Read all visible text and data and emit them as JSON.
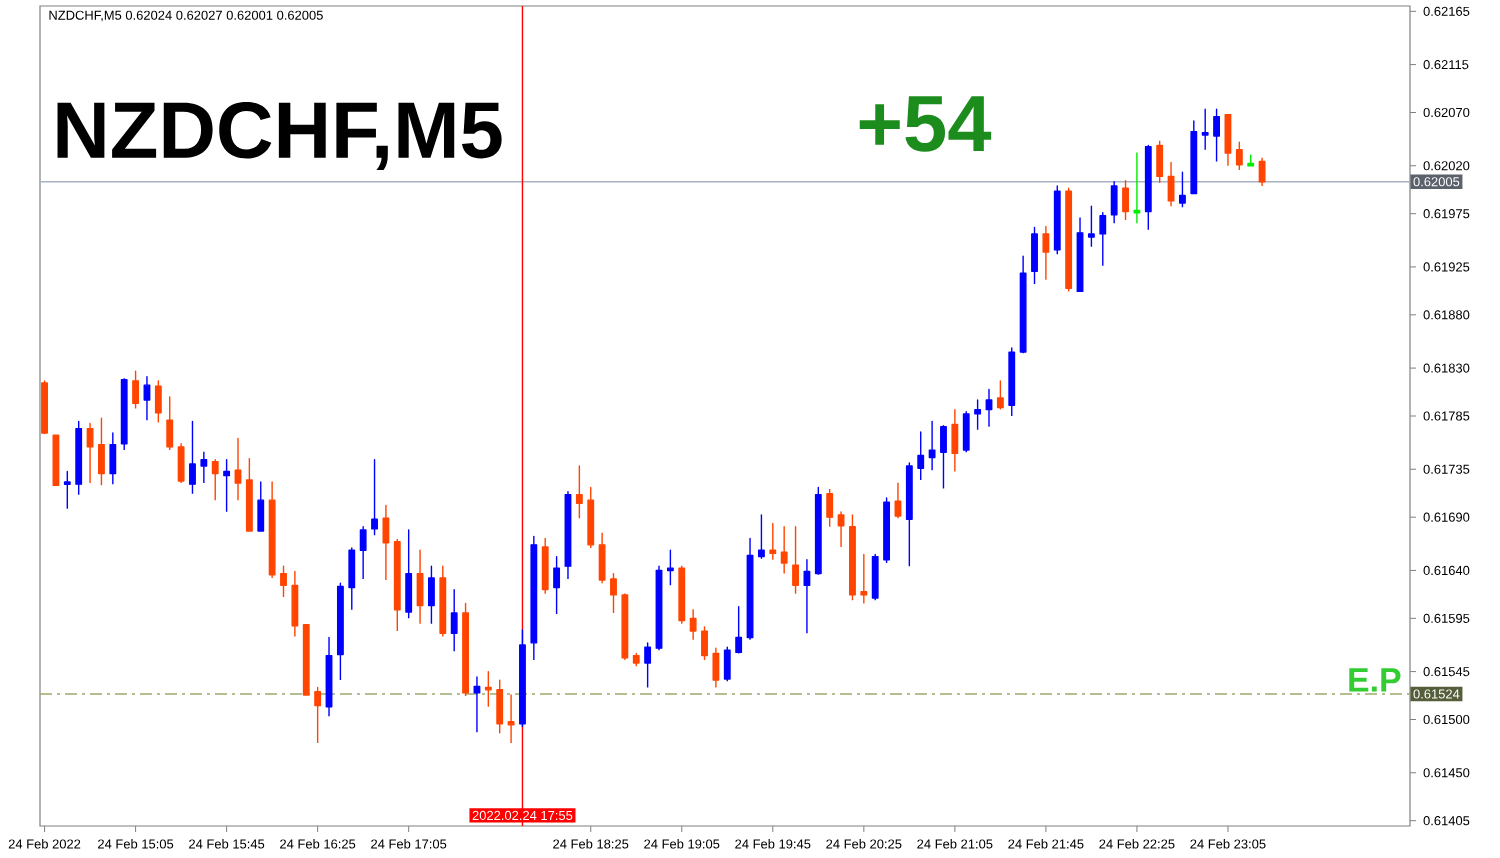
{
  "chart_data": {
    "type": "candlestick",
    "title": "NZDCHF,M5",
    "subtitle": "NZDCHF,M5  0.62024 0.62027 0.62001 0.62005",
    "x": [
      "2022-02-24T14:25",
      "2022-02-24T14:30",
      "2022-02-24T14:35",
      "2022-02-24T14:40",
      "2022-02-24T14:45",
      "2022-02-24T14:50",
      "2022-02-24T14:55",
      "2022-02-24T15:00",
      "2022-02-24T15:05",
      "2022-02-24T15:10",
      "2022-02-24T15:15",
      "2022-02-24T15:20",
      "2022-02-24T15:25",
      "2022-02-24T15:30",
      "2022-02-24T15:35",
      "2022-02-24T15:40",
      "2022-02-24T15:45",
      "2022-02-24T15:50",
      "2022-02-24T15:55",
      "2022-02-24T16:00",
      "2022-02-24T16:05",
      "2022-02-24T16:10",
      "2022-02-24T16:15",
      "2022-02-24T16:20",
      "2022-02-24T16:25",
      "2022-02-24T16:30",
      "2022-02-24T16:35",
      "2022-02-24T16:40",
      "2022-02-24T16:45",
      "2022-02-24T16:50",
      "2022-02-24T16:55",
      "2022-02-24T17:00",
      "2022-02-24T17:05",
      "2022-02-24T17:10",
      "2022-02-24T17:15",
      "2022-02-24T17:20",
      "2022-02-24T17:25",
      "2022-02-24T17:30",
      "2022-02-24T17:35",
      "2022-02-24T17:40",
      "2022-02-24T17:45",
      "2022-02-24T17:50",
      "2022-02-24T17:55",
      "2022-02-24T18:00",
      "2022-02-24T18:05",
      "2022-02-24T18:10",
      "2022-02-24T18:15",
      "2022-02-24T18:20",
      "2022-02-24T18:25",
      "2022-02-24T18:30",
      "2022-02-24T18:35",
      "2022-02-24T18:40",
      "2022-02-24T18:45",
      "2022-02-24T18:50",
      "2022-02-24T18:55",
      "2022-02-24T19:00",
      "2022-02-24T19:05",
      "2022-02-24T19:10",
      "2022-02-24T19:15",
      "2022-02-24T19:20",
      "2022-02-24T19:25",
      "2022-02-24T19:30",
      "2022-02-24T19:35",
      "2022-02-24T19:40",
      "2022-02-24T19:45",
      "2022-02-24T19:50",
      "2022-02-24T19:55",
      "2022-02-24T20:00",
      "2022-02-24T20:05",
      "2022-02-24T20:10",
      "2022-02-24T20:15",
      "2022-02-24T20:20",
      "2022-02-24T20:25",
      "2022-02-24T20:30",
      "2022-02-24T20:35",
      "2022-02-24T20:40",
      "2022-02-24T20:45",
      "2022-02-24T20:50",
      "2022-02-24T20:55",
      "2022-02-24T21:00",
      "2022-02-24T21:05",
      "2022-02-24T21:10",
      "2022-02-24T21:15",
      "2022-02-24T21:20",
      "2022-02-24T21:25",
      "2022-02-24T21:30",
      "2022-02-24T21:35",
      "2022-02-24T21:40",
      "2022-02-24T21:45",
      "2022-02-24T21:50",
      "2022-02-24T21:55",
      "2022-02-24T22:00",
      "2022-02-24T22:05",
      "2022-02-24T22:10",
      "2022-02-24T22:15",
      "2022-02-24T22:20",
      "2022-02-24T22:25",
      "2022-02-24T22:30",
      "2022-02-24T22:35",
      "2022-02-24T22:40",
      "2022-02-24T22:45",
      "2022-02-24T22:50",
      "2022-02-24T22:55",
      "2022-02-24T23:00",
      "2022-02-24T23:05",
      "2022-02-24T23:10",
      "2022-02-24T23:15",
      "2022-02-24T23:20"
    ],
    "ohlc": [
      [
        0.61816,
        0.61818,
        0.61768,
        0.61769
      ],
      [
        0.61767,
        0.61767,
        0.6172,
        0.6172
      ],
      [
        0.61721,
        0.61733,
        0.61698,
        0.61723
      ],
      [
        0.61721,
        0.6178,
        0.61711,
        0.61773
      ],
      [
        0.61773,
        0.61778,
        0.61722,
        0.61756
      ],
      [
        0.61758,
        0.61783,
        0.6172,
        0.61731
      ],
      [
        0.61731,
        0.61769,
        0.61721,
        0.61758
      ],
      [
        0.61759,
        0.6182,
        0.61753,
        0.61819
      ],
      [
        0.61818,
        0.61827,
        0.61792,
        0.61797
      ],
      [
        0.618,
        0.61822,
        0.61781,
        0.61814
      ],
      [
        0.61813,
        0.61818,
        0.61779,
        0.61788
      ],
      [
        0.61781,
        0.61803,
        0.61753,
        0.61756
      ],
      [
        0.61756,
        0.61759,
        0.61722,
        0.61724
      ],
      [
        0.61721,
        0.6178,
        0.61712,
        0.6174
      ],
      [
        0.61738,
        0.61751,
        0.61722,
        0.61744
      ],
      [
        0.61742,
        0.61744,
        0.61706,
        0.61731
      ],
      [
        0.61729,
        0.61744,
        0.61695,
        0.61733
      ],
      [
        0.61734,
        0.61764,
        0.61706,
        0.61722
      ],
      [
        0.61725,
        0.61745,
        0.61677,
        0.61677
      ],
      [
        0.61677,
        0.61723,
        0.61677,
        0.61706
      ],
      [
        0.61706,
        0.61723,
        0.61633,
        0.61636
      ],
      [
        0.61637,
        0.61644,
        0.61615,
        0.61626
      ],
      [
        0.61626,
        0.61639,
        0.61578,
        0.61588
      ],
      [
        0.61589,
        0.61589,
        0.61523,
        0.61523
      ],
      [
        0.61526,
        0.6153,
        0.61478,
        0.61513
      ],
      [
        0.61512,
        0.61577,
        0.61503,
        0.6156
      ],
      [
        0.61561,
        0.61628,
        0.61537,
        0.61625
      ],
      [
        0.61624,
        0.61661,
        0.61603,
        0.61659
      ],
      [
        0.61659,
        0.61681,
        0.61632,
        0.61678
      ],
      [
        0.61679,
        0.61744,
        0.61673,
        0.61688
      ],
      [
        0.61689,
        0.61701,
        0.61631,
        0.61666
      ],
      [
        0.61667,
        0.61669,
        0.61583,
        0.61603
      ],
      [
        0.61601,
        0.61678,
        0.61595,
        0.61637
      ],
      [
        0.61637,
        0.61659,
        0.6159,
        0.61607
      ],
      [
        0.61607,
        0.61644,
        0.6159,
        0.61633
      ],
      [
        0.61633,
        0.61644,
        0.61578,
        0.61581
      ],
      [
        0.61581,
        0.61622,
        0.61564,
        0.616
      ],
      [
        0.616,
        0.61609,
        0.61522,
        0.61525
      ],
      [
        0.61525,
        0.6154,
        0.61488,
        0.61531
      ],
      [
        0.6153,
        0.61545,
        0.61512,
        0.61528
      ],
      [
        0.61528,
        0.61537,
        0.61487,
        0.61496
      ],
      [
        0.61498,
        0.61523,
        0.61478,
        0.61495
      ],
      [
        0.61496,
        0.61584,
        0.61493,
        0.6157
      ],
      [
        0.61572,
        0.61672,
        0.61556,
        0.61664
      ],
      [
        0.61662,
        0.6167,
        0.61618,
        0.61622
      ],
      [
        0.61624,
        0.61653,
        0.61599,
        0.61642
      ],
      [
        0.61644,
        0.61714,
        0.61632,
        0.61711
      ],
      [
        0.61711,
        0.61738,
        0.61689,
        0.61703
      ],
      [
        0.61706,
        0.61718,
        0.61661,
        0.61664
      ],
      [
        0.61664,
        0.61675,
        0.61628,
        0.61631
      ],
      [
        0.61632,
        0.61637,
        0.616,
        0.61617
      ],
      [
        0.61617,
        0.61618,
        0.61556,
        0.61558
      ],
      [
        0.6156,
        0.61562,
        0.6155,
        0.61553
      ],
      [
        0.61553,
        0.61572,
        0.6153,
        0.61568
      ],
      [
        0.61567,
        0.61644,
        0.61565,
        0.6164
      ],
      [
        0.6164,
        0.61659,
        0.61626,
        0.61642
      ],
      [
        0.61642,
        0.61644,
        0.6159,
        0.61593
      ],
      [
        0.61595,
        0.61603,
        0.61575,
        0.61583
      ],
      [
        0.61583,
        0.61587,
        0.61556,
        0.6156
      ],
      [
        0.61562,
        0.61567,
        0.6153,
        0.61537
      ],
      [
        0.61538,
        0.61568,
        0.61536,
        0.61565
      ],
      [
        0.61563,
        0.61606,
        0.61562,
        0.61577
      ],
      [
        0.61577,
        0.6167,
        0.61575,
        0.61654
      ],
      [
        0.61653,
        0.61692,
        0.61651,
        0.61659
      ],
      [
        0.61659,
        0.61684,
        0.6165,
        0.61656
      ],
      [
        0.61657,
        0.61681,
        0.61637,
        0.61647
      ],
      [
        0.61645,
        0.61681,
        0.61618,
        0.61626
      ],
      [
        0.61626,
        0.6165,
        0.61581,
        0.61639
      ],
      [
        0.61637,
        0.61718,
        0.61636,
        0.61711
      ],
      [
        0.61712,
        0.61716,
        0.61681,
        0.6169
      ],
      [
        0.61692,
        0.61695,
        0.61662,
        0.61682
      ],
      [
        0.61681,
        0.61692,
        0.61612,
        0.61617
      ],
      [
        0.6162,
        0.61655,
        0.61609,
        0.61617
      ],
      [
        0.61614,
        0.61655,
        0.61612,
        0.61653
      ],
      [
        0.6165,
        0.61708,
        0.61647,
        0.61704
      ],
      [
        0.61705,
        0.61722,
        0.61689,
        0.61691
      ],
      [
        0.61688,
        0.61741,
        0.61644,
        0.61738
      ],
      [
        0.61736,
        0.6177,
        0.61725,
        0.61748
      ],
      [
        0.61746,
        0.6178,
        0.61734,
        0.61753
      ],
      [
        0.61751,
        0.61776,
        0.61717,
        0.61775
      ],
      [
        0.61777,
        0.61791,
        0.61733,
        0.6175
      ],
      [
        0.61753,
        0.61789,
        0.61751,
        0.61787
      ],
      [
        0.61787,
        0.618,
        0.61772,
        0.61791
      ],
      [
        0.61791,
        0.6181,
        0.61775,
        0.618
      ],
      [
        0.61802,
        0.61818,
        0.61791,
        0.61793
      ],
      [
        0.61795,
        0.61849,
        0.61785,
        0.61845
      ],
      [
        0.61845,
        0.61935,
        0.61844,
        0.61919
      ],
      [
        0.61921,
        0.61962,
        0.61909,
        0.61956
      ],
      [
        0.61956,
        0.61963,
        0.61913,
        0.61939
      ],
      [
        0.61941,
        0.62001,
        0.61937,
        0.61996
      ],
      [
        0.61996,
        0.61999,
        0.61902,
        0.61905
      ],
      [
        0.61902,
        0.61971,
        0.61902,
        0.61957
      ],
      [
        0.61953,
        0.61982,
        0.61944,
        0.61956
      ],
      [
        0.61956,
        0.61976,
        0.61926,
        0.61973
      ],
      [
        0.61974,
        0.62005,
        0.61966,
        0.62001
      ],
      [
        0.61999,
        0.62006,
        0.61969,
        0.61977
      ],
      [
        0.61977,
        0.62032,
        0.61966,
        0.61977
      ],
      [
        0.61977,
        0.62039,
        0.6196,
        0.62038
      ],
      [
        0.62039,
        0.62043,
        0.62004,
        0.6201
      ],
      [
        0.6201,
        0.62023,
        0.61982,
        0.61987
      ],
      [
        0.61985,
        0.62014,
        0.61981,
        0.61992
      ],
      [
        0.61994,
        0.62062,
        0.61994,
        0.62052
      ],
      [
        0.62049,
        0.62073,
        0.62035,
        0.62051
      ],
      [
        0.62048,
        0.62073,
        0.62024,
        0.62066
      ],
      [
        0.62068,
        0.62068,
        0.6202,
        0.62032
      ],
      [
        0.62035,
        0.62042,
        0.62016,
        0.62021
      ],
      [
        0.62021,
        0.6203,
        0.6202,
        0.62021
      ],
      [
        0.62024,
        0.62027,
        0.62001,
        0.62005
      ]
    ],
    "colors": [
      "#ff4500",
      "#ff4500",
      "#0000ff",
      "#0000ff",
      "#ff4500",
      "#ff4500",
      "#0000ff",
      "#0000ff",
      "#ff4500",
      "#0000ff",
      "#ff4500",
      "#ff4500",
      "#ff4500",
      "#0000ff",
      "#0000ff",
      "#ff4500",
      "#0000ff",
      "#ff4500",
      "#ff4500",
      "#0000ff",
      "#ff4500",
      "#ff4500",
      "#ff4500",
      "#ff4500",
      "#ff4500",
      "#0000ff",
      "#0000ff",
      "#0000ff",
      "#0000ff",
      "#0000ff",
      "#ff4500",
      "#ff4500",
      "#0000ff",
      "#ff4500",
      "#0000ff",
      "#ff4500",
      "#0000ff",
      "#ff4500",
      "#0000ff",
      "#ff4500",
      "#ff4500",
      "#ff4500",
      "#0000ff",
      "#0000ff",
      "#ff4500",
      "#0000ff",
      "#0000ff",
      "#ff4500",
      "#ff4500",
      "#ff4500",
      "#ff4500",
      "#ff4500",
      "#ff4500",
      "#0000ff",
      "#0000ff",
      "#0000ff",
      "#ff4500",
      "#ff4500",
      "#ff4500",
      "#ff4500",
      "#0000ff",
      "#0000ff",
      "#0000ff",
      "#0000ff",
      "#ff4500",
      "#ff4500",
      "#ff4500",
      "#0000ff",
      "#0000ff",
      "#ff4500",
      "#ff4500",
      "#ff4500",
      "#ff4500",
      "#0000ff",
      "#0000ff",
      "#ff4500",
      "#0000ff",
      "#0000ff",
      "#0000ff",
      "#0000ff",
      "#ff4500",
      "#0000ff",
      "#0000ff",
      "#0000ff",
      "#ff4500",
      "#0000ff",
      "#0000ff",
      "#0000ff",
      "#ff4500",
      "#0000ff",
      "#ff4500",
      "#0000ff",
      "#0000ff",
      "#0000ff",
      "#0000ff",
      "#ff4500",
      "#00ee00",
      "#0000ff",
      "#ff4500",
      "#ff4500",
      "#0000ff",
      "#0000ff",
      "#0000ff",
      "#0000ff",
      "#ff4500",
      "#ff4500",
      "#00ee00",
      "#ff4500"
    ],
    "xlim": [
      "2022-02-24T14:23",
      "2022-02-25T00:25"
    ],
    "xticks": [
      {
        "value": "2022-02-24T14:25",
        "label": "24 Feb 2022"
      },
      {
        "value": "2022-02-24T15:05",
        "label": "24 Feb 15:05"
      },
      {
        "value": "2022-02-24T15:45",
        "label": "24 Feb 15:45"
      },
      {
        "value": "2022-02-24T16:25",
        "label": "24 Feb 16:25"
      },
      {
        "value": "2022-02-24T17:05",
        "label": "24 Feb 17:05"
      },
      {
        "value": "2022-02-24T18:25",
        "label": "24 Feb 18:25"
      },
      {
        "value": "2022-02-24T19:05",
        "label": "24 Feb 19:05"
      },
      {
        "value": "2022-02-24T19:45",
        "label": "24 Feb 19:45"
      },
      {
        "value": "2022-02-24T20:25",
        "label": "24 Feb 20:25"
      },
      {
        "value": "2022-02-24T21:05",
        "label": "24 Feb 21:05"
      },
      {
        "value": "2022-02-24T21:45",
        "label": "24 Feb 21:45"
      },
      {
        "value": "2022-02-24T22:25",
        "label": "24 Feb 22:25"
      },
      {
        "value": "2022-02-24T23:05",
        "label": "24 Feb 23:05"
      }
    ],
    "ylim": [
      0.614,
      0.6217
    ],
    "yticks": [
      0.62165,
      0.62115,
      {
        "value": 0.6207,
        "label": "0.62070"
      },
      {
        "value": 0.6202,
        "label": "0.62020"
      },
      0.61975,
      0.61925,
      {
        "value": 0.6188,
        "label": "0.61880"
      },
      {
        "value": 0.6183,
        "label": "0.61830"
      },
      0.61785,
      0.61735,
      {
        "value": 0.6169,
        "label": "0.61690"
      },
      {
        "value": 0.6164,
        "label": "0.61640"
      },
      0.61595,
      0.61545,
      {
        "value": 0.615,
        "label": "0.61500"
      },
      {
        "value": 0.6145,
        "label": "0.61450"
      },
      0.61405
    ],
    "ref_lines": [
      {
        "axis": "y",
        "value": 0.62005,
        "label": "0.62005",
        "color": "#a8b2c4",
        "line_style": "solid"
      },
      {
        "axis": "y",
        "value": 0.61524,
        "label": "0.61524",
        "color": "#9aaa6a",
        "line_style": "dashdot"
      },
      {
        "axis": "x",
        "value": "2022-02-24T17:55",
        "label": "2022.02.24 17:55",
        "color": "#ff0000",
        "line_style": "solid"
      }
    ],
    "annotations": [
      "+54",
      {
        "text": "E.P",
        "y": 0.61524
      }
    ]
  }
}
